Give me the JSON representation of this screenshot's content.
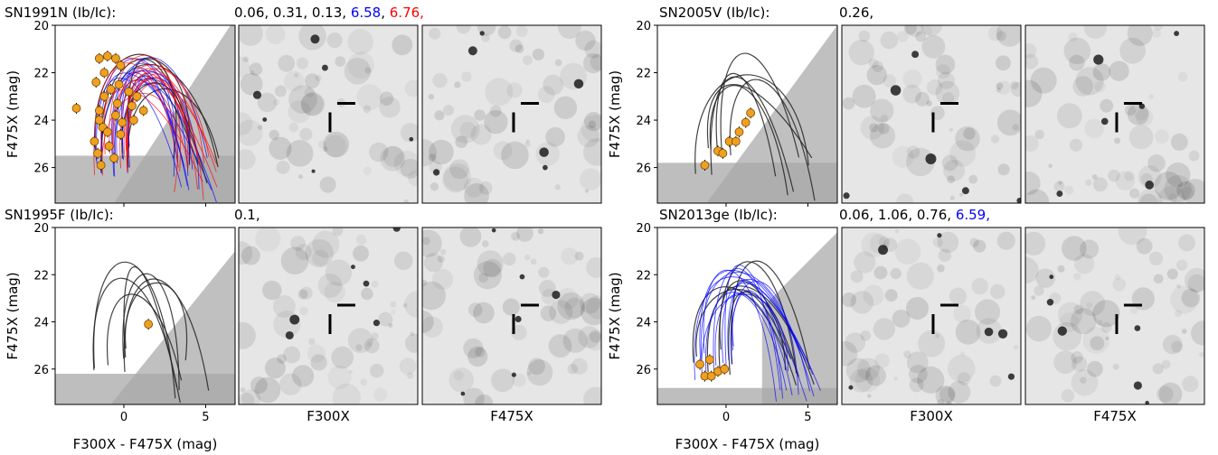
{
  "figure": {
    "x_axis_label": "F300X - F475X (mag)",
    "y_axis_label": "F475X (mag)",
    "image_labels": [
      "F300X",
      "F475X"
    ]
  },
  "chart_data": [
    {
      "type": "scatter",
      "name": "SN1991N (Ib/Ic):",
      "title_values": [
        {
          "text": "0.06, 0.31, 0.13,",
          "color": "#000000"
        },
        {
          "text": "6.58",
          "color": "#0000ff"
        },
        {
          "text": ",",
          "color": "#000000"
        },
        {
          "text": "6.76,",
          "color": "#ff0000"
        }
      ],
      "xlim": [
        -4.2,
        6.8
      ],
      "ylim": [
        27.5,
        20
      ],
      "xticks": [
        0,
        5
      ],
      "yticks": [
        20,
        22,
        24,
        26
      ],
      "shade_y": 25.5,
      "shade_diag": [
        [
          -0.6,
          27.5
        ],
        [
          6.8,
          19.7
        ]
      ],
      "track_colors": [
        "#222222",
        "#0000ff",
        "#ff0000"
      ],
      "points": [
        [
          -1.5,
          21.4
        ],
        [
          -1.0,
          21.3
        ],
        [
          -0.5,
          21.4
        ],
        [
          -0.2,
          21.7
        ],
        [
          -1.2,
          22.0
        ],
        [
          -0.3,
          22.5
        ],
        [
          0.3,
          22.8
        ],
        [
          0.8,
          23.0
        ],
        [
          -0.8,
          22.7
        ],
        [
          -2.9,
          23.5
        ],
        [
          -1.5,
          23.6
        ],
        [
          -0.5,
          23.8
        ],
        [
          0.5,
          23.4
        ],
        [
          -1.3,
          24.3
        ],
        [
          -0.2,
          24.6
        ],
        [
          -1.8,
          24.9
        ],
        [
          -0.9,
          25.1
        ],
        [
          -1.6,
          25.4
        ],
        [
          -0.6,
          25.6
        ],
        [
          -1.4,
          25.9
        ],
        [
          1.2,
          23.6
        ],
        [
          -0.1,
          24.1
        ],
        [
          -1.0,
          24.5
        ],
        [
          0.6,
          24.0
        ],
        [
          -1.7,
          22.4
        ],
        [
          -1.2,
          23.0
        ],
        [
          -0.4,
          23.3
        ],
        [
          -1.5,
          24.0
        ]
      ]
    },
    {
      "type": "scatter",
      "name": "SN2005V (Ib/Ic):",
      "title_values": [
        {
          "text": "0.26,",
          "color": "#000000"
        }
      ],
      "xlim": [
        -4.2,
        6.8
      ],
      "ylim": [
        27.5,
        20
      ],
      "xticks": [
        0,
        5
      ],
      "yticks": [
        20,
        22,
        24,
        26
      ],
      "shade_y": 25.8,
      "shade_diag": [
        [
          -1.2,
          27.5
        ],
        [
          6.8,
          20.0
        ]
      ],
      "track_colors": [
        "#222222"
      ],
      "points": [
        [
          -1.3,
          25.9
        ],
        [
          -0.5,
          25.3
        ],
        [
          0.2,
          24.9
        ],
        [
          0.8,
          24.5
        ],
        [
          1.2,
          24.1
        ],
        [
          1.5,
          23.7
        ],
        [
          0.6,
          24.9
        ],
        [
          -0.2,
          25.4
        ]
      ]
    },
    {
      "type": "scatter",
      "name": "SN1995F (Ib/Ic):",
      "title_values": [
        {
          "text": "0.1,",
          "color": "#000000"
        }
      ],
      "xlim": [
        -4.2,
        6.8
      ],
      "ylim": [
        27.5,
        20
      ],
      "xticks": [
        0,
        5
      ],
      "yticks": [
        20,
        22,
        24,
        26
      ],
      "shade_y": 26.2,
      "shade_diag": [
        [
          -0.8,
          27.5
        ],
        [
          6.8,
          21.0
        ]
      ],
      "track_colors": [
        "#222222"
      ],
      "points": [
        [
          1.5,
          24.1
        ]
      ]
    },
    {
      "type": "scatter",
      "name": "SN2013ge (Ib/Ic):",
      "title_values": [
        {
          "text": "0.06, 1.06, 0.76,",
          "color": "#000000"
        },
        {
          "text": "6.59,",
          "color": "#0000ff"
        }
      ],
      "xlim": [
        -4.2,
        6.8
      ],
      "ylim": [
        27.5,
        20
      ],
      "xticks": [
        0,
        5
      ],
      "yticks": [
        20,
        22,
        24,
        26
      ],
      "shade_y": 26.8,
      "shade_diag": [
        [
          2.2,
          23.4
        ],
        [
          6.8,
          20.2
        ]
      ],
      "track_colors": [
        "#222222",
        "#0000ff"
      ],
      "points": [
        [
          -1.6,
          25.8
        ],
        [
          -1.0,
          25.6
        ],
        [
          -0.5,
          26.1
        ],
        [
          -1.3,
          26.3
        ],
        [
          -0.9,
          26.3
        ],
        [
          -0.1,
          26.0
        ]
      ]
    }
  ]
}
